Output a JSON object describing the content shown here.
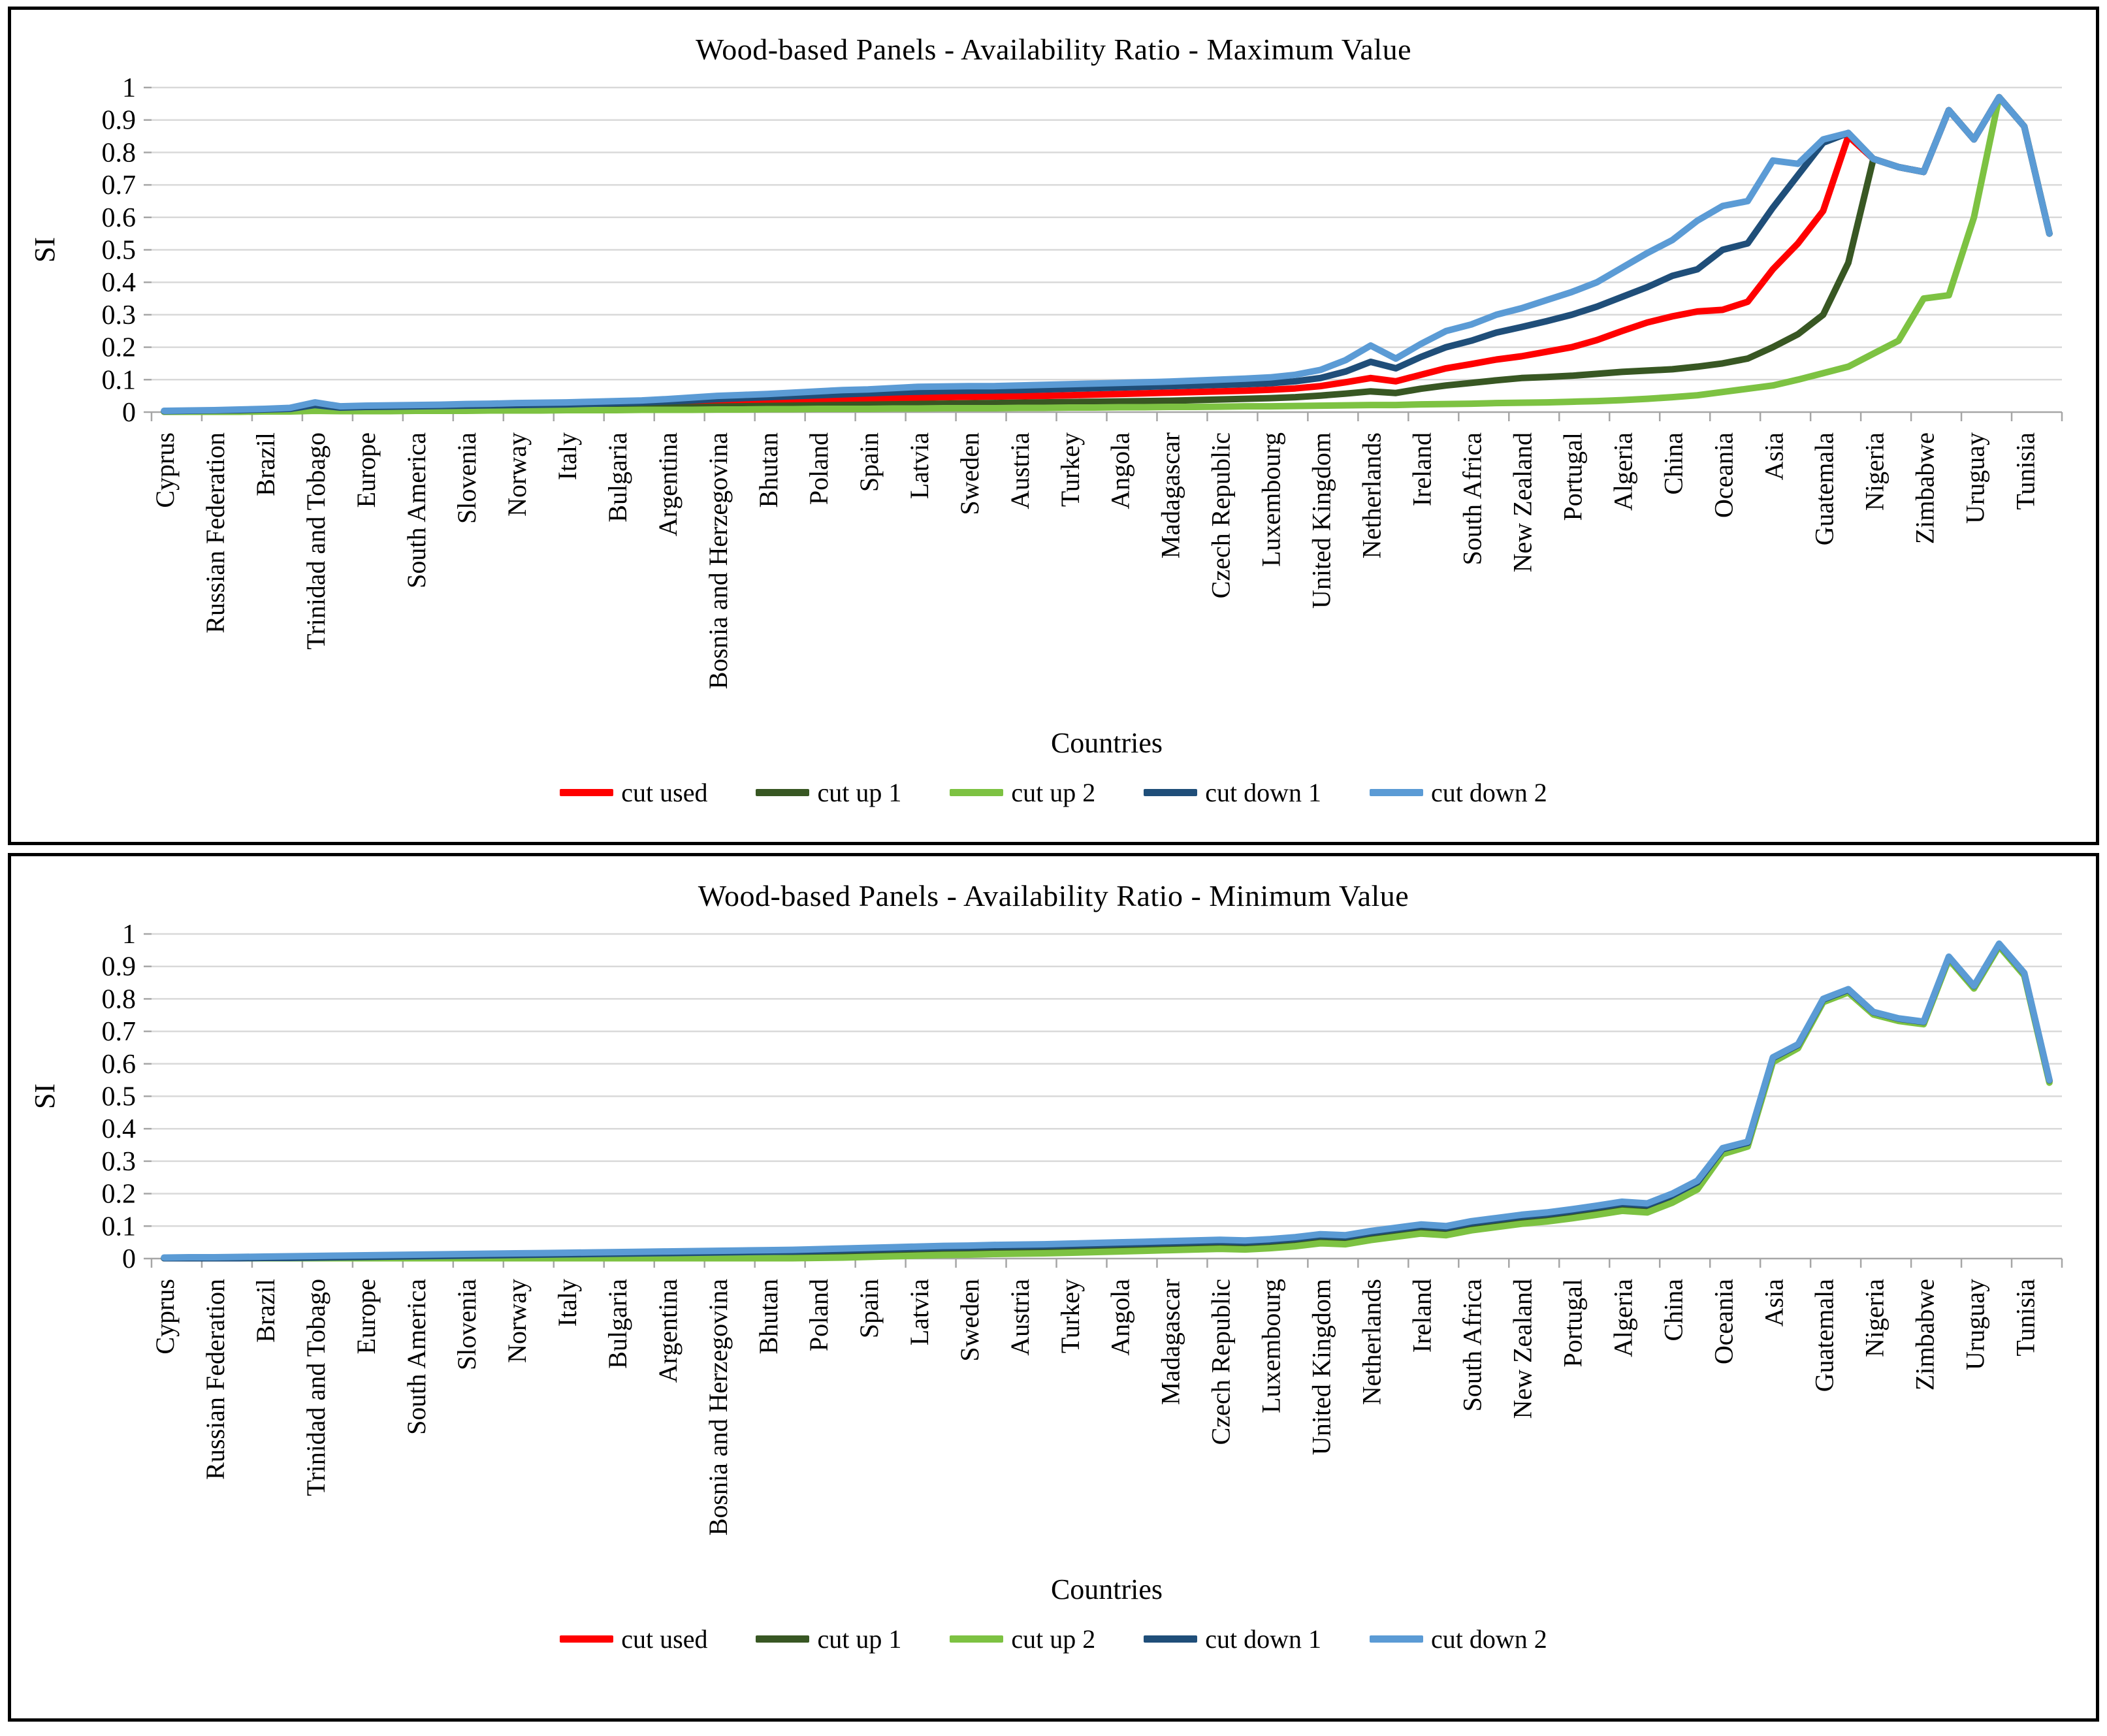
{
  "page": {
    "background": "#FFFFFF",
    "panel_border_color": "#000000"
  },
  "colors": {
    "gridline": "#D9D9D9",
    "axis_line": "#A6A6A6",
    "text": "#000000"
  },
  "chart_data": [
    {
      "type": "line",
      "title": "Wood-based Panels - Availability Ratio - Maximum Value",
      "xlabel": "Countries",
      "ylabel": "SI",
      "ylim": [
        0,
        1
      ],
      "yticks": [
        "0",
        "0.1",
        "0.2",
        "0.3",
        "0.4",
        "0.5",
        "0.6",
        "0.7",
        "0.8",
        "0.9",
        "1"
      ],
      "grid": true,
      "legend_position": "bottom",
      "points_per_label": 2,
      "categories": [
        "Cyprus",
        "Russian Federation",
        "Brazil",
        "Trinidad and Tobago",
        "Europe",
        "South America",
        "Slovenia",
        "Norway",
        "Italy",
        "Bulgaria",
        "Argentina",
        "Bosnia and Herzegovina",
        "Bhutan",
        "Poland",
        "Spain",
        "Latvia",
        "Sweden",
        "Austria",
        "Turkey",
        "Angola",
        "Madagascar",
        "Czech Republic",
        "Luxembourg",
        "United Kingdom",
        "Netherlands",
        "Ireland",
        "South Africa",
        "New Zealand",
        "Portugal",
        "Algeria",
        "China",
        "Oceania",
        "Asia",
        "Guatemala",
        "Nigeria",
        "Zimbabwe",
        "Uruguay",
        "Tunisia"
      ],
      "series": [
        {
          "name": "cut used",
          "color": "#FF0000",
          "values": [
            0.002,
            0.003,
            0.004,
            0.005,
            0.006,
            0.008,
            0.016,
            0.01,
            0.012,
            0.013,
            0.014,
            0.015,
            0.016,
            0.016,
            0.017,
            0.018,
            0.018,
            0.019,
            0.02,
            0.021,
            0.022,
            0.025,
            0.028,
            0.03,
            0.032,
            0.034,
            0.036,
            0.038,
            0.04,
            0.042,
            0.044,
            0.046,
            0.047,
            0.048,
            0.049,
            0.05,
            0.052,
            0.054,
            0.056,
            0.058,
            0.06,
            0.062,
            0.064,
            0.066,
            0.069,
            0.073,
            0.08,
            0.092,
            0.105,
            0.095,
            0.115,
            0.135,
            0.148,
            0.162,
            0.172,
            0.186,
            0.2,
            0.222,
            0.25,
            0.276,
            0.295,
            0.31,
            0.315,
            0.34,
            0.44,
            0.52,
            0.62,
            0.85,
            0.78,
            0.755,
            0.74,
            0.93,
            0.84,
            0.97,
            0.88,
            0.55
          ]
        },
        {
          "name": "cut up 1",
          "color": "#385723",
          "values": [
            0.001,
            0.002,
            0.002,
            0.003,
            0.004,
            0.005,
            0.01,
            0.006,
            0.007,
            0.008,
            0.008,
            0.009,
            0.01,
            0.01,
            0.011,
            0.011,
            0.012,
            0.012,
            0.013,
            0.013,
            0.014,
            0.015,
            0.017,
            0.018,
            0.019,
            0.02,
            0.021,
            0.022,
            0.023,
            0.024,
            0.025,
            0.026,
            0.027,
            0.028,
            0.029,
            0.03,
            0.031,
            0.032,
            0.033,
            0.034,
            0.035,
            0.037,
            0.039,
            0.041,
            0.043,
            0.046,
            0.051,
            0.057,
            0.064,
            0.059,
            0.072,
            0.082,
            0.09,
            0.098,
            0.105,
            0.108,
            0.112,
            0.118,
            0.124,
            0.128,
            0.132,
            0.14,
            0.15,
            0.165,
            0.2,
            0.24,
            0.3,
            0.46,
            0.78,
            0.755,
            0.74,
            0.93,
            0.84,
            0.97,
            0.88,
            0.55
          ]
        },
        {
          "name": "cut up 2",
          "color": "#7DC242",
          "values": [
            0.001,
            0.001,
            0.001,
            0.001,
            0.002,
            0.002,
            0.004,
            0.003,
            0.003,
            0.003,
            0.004,
            0.004,
            0.004,
            0.005,
            0.005,
            0.005,
            0.006,
            0.006,
            0.006,
            0.007,
            0.007,
            0.007,
            0.008,
            0.008,
            0.009,
            0.009,
            0.01,
            0.01,
            0.01,
            0.011,
            0.011,
            0.012,
            0.012,
            0.012,
            0.013,
            0.013,
            0.014,
            0.014,
            0.015,
            0.015,
            0.016,
            0.016,
            0.017,
            0.018,
            0.018,
            0.019,
            0.02,
            0.021,
            0.022,
            0.022,
            0.024,
            0.025,
            0.026,
            0.028,
            0.029,
            0.03,
            0.032,
            0.034,
            0.037,
            0.041,
            0.046,
            0.052,
            0.062,
            0.072,
            0.082,
            0.1,
            0.12,
            0.14,
            0.18,
            0.22,
            0.35,
            0.36,
            0.6,
            0.97,
            0.88,
            0.55
          ]
        },
        {
          "name": "cut down 1",
          "color": "#1F4E79",
          "values": [
            0.003,
            0.004,
            0.005,
            0.006,
            0.008,
            0.01,
            0.022,
            0.014,
            0.016,
            0.017,
            0.018,
            0.019,
            0.02,
            0.021,
            0.022,
            0.023,
            0.024,
            0.026,
            0.028,
            0.03,
            0.033,
            0.036,
            0.04,
            0.043,
            0.046,
            0.049,
            0.052,
            0.055,
            0.058,
            0.061,
            0.063,
            0.065,
            0.066,
            0.067,
            0.068,
            0.07,
            0.072,
            0.074,
            0.076,
            0.078,
            0.08,
            0.082,
            0.084,
            0.086,
            0.089,
            0.095,
            0.105,
            0.125,
            0.155,
            0.135,
            0.17,
            0.2,
            0.22,
            0.245,
            0.262,
            0.28,
            0.3,
            0.325,
            0.355,
            0.385,
            0.42,
            0.44,
            0.5,
            0.52,
            0.63,
            0.73,
            0.83,
            0.86,
            0.78,
            0.755,
            0.74,
            0.93,
            0.84,
            0.97,
            0.88,
            0.55
          ]
        },
        {
          "name": "cut down 2",
          "color": "#5B9BD5",
          "values": [
            0.004,
            0.005,
            0.006,
            0.008,
            0.01,
            0.013,
            0.03,
            0.018,
            0.02,
            0.021,
            0.022,
            0.023,
            0.025,
            0.026,
            0.028,
            0.029,
            0.03,
            0.032,
            0.034,
            0.036,
            0.04,
            0.045,
            0.05,
            0.053,
            0.056,
            0.06,
            0.064,
            0.068,
            0.07,
            0.074,
            0.078,
            0.079,
            0.08,
            0.08,
            0.082,
            0.084,
            0.086,
            0.088,
            0.09,
            0.092,
            0.094,
            0.097,
            0.1,
            0.103,
            0.107,
            0.115,
            0.13,
            0.16,
            0.205,
            0.165,
            0.21,
            0.25,
            0.27,
            0.3,
            0.32,
            0.345,
            0.37,
            0.4,
            0.445,
            0.49,
            0.53,
            0.59,
            0.635,
            0.65,
            0.775,
            0.765,
            0.84,
            0.86,
            0.78,
            0.755,
            0.74,
            0.93,
            0.84,
            0.97,
            0.88,
            0.55
          ]
        }
      ]
    },
    {
      "type": "line",
      "title": "Wood-based Panels - Availability Ratio - Minimum Value",
      "xlabel": "Countries",
      "ylabel": "SI",
      "ylim": [
        0,
        1
      ],
      "yticks": [
        "0",
        "0.1",
        "0.2",
        "0.3",
        "0.4",
        "0.5",
        "0.6",
        "0.7",
        "0.8",
        "0.9",
        "1"
      ],
      "grid": true,
      "legend_position": "bottom",
      "points_per_label": 2,
      "categories": [
        "Cyprus",
        "Russian Federation",
        "Brazil",
        "Trinidad and Tobago",
        "Europe",
        "South America",
        "Slovenia",
        "Norway",
        "Italy",
        "Bulgaria",
        "Argentina",
        "Bosnia and Herzegovina",
        "Bhutan",
        "Poland",
        "Spain",
        "Latvia",
        "Sweden",
        "Austria",
        "Turkey",
        "Angola",
        "Madagascar",
        "Czech Republic",
        "Luxembourg",
        "United Kingdom",
        "Netherlands",
        "Ireland",
        "South Africa",
        "New Zealand",
        "Portugal",
        "Algeria",
        "China",
        "Oceania",
        "Asia",
        "Guatemala",
        "Nigeria",
        "Zimbabwe",
        "Uruguay",
        "Tunisia"
      ],
      "series": [
        {
          "name": "cut used",
          "color": "#FF0000",
          "values": [
            0.001,
            0.001,
            0.001,
            0.001,
            0.001,
            0.001,
            0.001,
            0.001,
            0.001,
            0.001,
            0.001,
            0.002,
            0.003,
            0.004,
            0.005,
            0.006,
            0.007,
            0.008,
            0.009,
            0.01,
            0.011,
            0.012,
            0.013,
            0.014,
            0.015,
            0.016,
            0.018,
            0.02,
            0.022,
            0.024,
            0.026,
            0.028,
            0.029,
            0.031,
            0.032,
            0.033,
            0.035,
            0.037,
            0.039,
            0.041,
            0.043,
            0.045,
            0.047,
            0.045,
            0.049,
            0.055,
            0.064,
            0.061,
            0.074,
            0.084,
            0.094,
            0.089,
            0.104,
            0.114,
            0.124,
            0.131,
            0.141,
            0.152,
            0.164,
            0.159,
            0.19,
            0.231,
            0.334,
            0.354,
            0.616,
            0.656,
            0.796,
            0.826,
            0.758,
            0.738,
            0.728,
            0.928,
            0.838,
            0.968,
            0.878,
            0.548
          ]
        },
        {
          "name": "cut up 1",
          "color": "#385723",
          "values": [
            0.001,
            0.001,
            0.001,
            0.001,
            0.001,
            0.001,
            0.001,
            0.001,
            0.001,
            0.001,
            0.001,
            0.001,
            0.001,
            0.001,
            0.001,
            0.001,
            0.001,
            0.001,
            0.002,
            0.003,
            0.004,
            0.005,
            0.006,
            0.007,
            0.008,
            0.009,
            0.011,
            0.013,
            0.015,
            0.017,
            0.019,
            0.021,
            0.022,
            0.024,
            0.025,
            0.026,
            0.028,
            0.03,
            0.032,
            0.034,
            0.036,
            0.038,
            0.04,
            0.038,
            0.042,
            0.048,
            0.057,
            0.054,
            0.067,
            0.077,
            0.087,
            0.082,
            0.097,
            0.107,
            0.117,
            0.124,
            0.134,
            0.145,
            0.157,
            0.152,
            0.182,
            0.223,
            0.33,
            0.352,
            0.614,
            0.654,
            0.794,
            0.824,
            0.756,
            0.736,
            0.726,
            0.926,
            0.836,
            0.966,
            0.876,
            0.546
          ]
        },
        {
          "name": "cut up 2",
          "color": "#7DC242",
          "values": [
            0.001,
            0.001,
            0.001,
            0.001,
            0.001,
            0.001,
            0.001,
            0.001,
            0.001,
            0.001,
            0.001,
            0.001,
            0.001,
            0.001,
            0.001,
            0.001,
            0.001,
            0.001,
            0.001,
            0.001,
            0.001,
            0.001,
            0.001,
            0.001,
            0.001,
            0.001,
            0.002,
            0.003,
            0.005,
            0.007,
            0.009,
            0.011,
            0.012,
            0.014,
            0.015,
            0.016,
            0.018,
            0.02,
            0.022,
            0.024,
            0.026,
            0.028,
            0.03,
            0.028,
            0.032,
            0.038,
            0.047,
            0.044,
            0.057,
            0.067,
            0.077,
            0.072,
            0.087,
            0.097,
            0.107,
            0.114,
            0.124,
            0.135,
            0.147,
            0.142,
            0.172,
            0.213,
            0.322,
            0.345,
            0.605,
            0.648,
            0.79,
            0.82,
            0.752,
            0.732,
            0.722,
            0.922,
            0.832,
            0.962,
            0.872,
            0.542
          ]
        },
        {
          "name": "cut down 1",
          "color": "#1F4E79",
          "values": [
            0.001,
            0.001,
            0.001,
            0.001,
            0.002,
            0.002,
            0.003,
            0.004,
            0.005,
            0.006,
            0.007,
            0.008,
            0.009,
            0.01,
            0.011,
            0.012,
            0.013,
            0.014,
            0.015,
            0.016,
            0.017,
            0.018,
            0.019,
            0.02,
            0.021,
            0.022,
            0.024,
            0.026,
            0.028,
            0.03,
            0.032,
            0.034,
            0.035,
            0.037,
            0.038,
            0.039,
            0.041,
            0.043,
            0.045,
            0.047,
            0.049,
            0.051,
            0.053,
            0.051,
            0.055,
            0.061,
            0.07,
            0.067,
            0.08,
            0.09,
            0.1,
            0.095,
            0.11,
            0.12,
            0.13,
            0.137,
            0.147,
            0.158,
            0.17,
            0.165,
            0.195,
            0.235,
            0.337,
            0.357,
            0.618,
            0.658,
            0.798,
            0.828,
            0.759,
            0.739,
            0.729,
            0.929,
            0.839,
            0.969,
            0.879,
            0.549
          ]
        },
        {
          "name": "cut down 2",
          "color": "#5B9BD5",
          "values": [
            0.003,
            0.004,
            0.004,
            0.005,
            0.006,
            0.007,
            0.008,
            0.009,
            0.01,
            0.011,
            0.012,
            0.013,
            0.014,
            0.015,
            0.016,
            0.017,
            0.018,
            0.019,
            0.02,
            0.021,
            0.022,
            0.023,
            0.024,
            0.025,
            0.026,
            0.027,
            0.029,
            0.031,
            0.033,
            0.035,
            0.037,
            0.039,
            0.04,
            0.042,
            0.043,
            0.044,
            0.046,
            0.048,
            0.05,
            0.052,
            0.054,
            0.056,
            0.058,
            0.056,
            0.06,
            0.066,
            0.075,
            0.072,
            0.085,
            0.095,
            0.105,
            0.1,
            0.115,
            0.125,
            0.135,
            0.142,
            0.152,
            0.163,
            0.175,
            0.17,
            0.2,
            0.24,
            0.34,
            0.36,
            0.62,
            0.66,
            0.8,
            0.83,
            0.76,
            0.74,
            0.73,
            0.93,
            0.84,
            0.97,
            0.88,
            0.55
          ]
        }
      ]
    }
  ]
}
